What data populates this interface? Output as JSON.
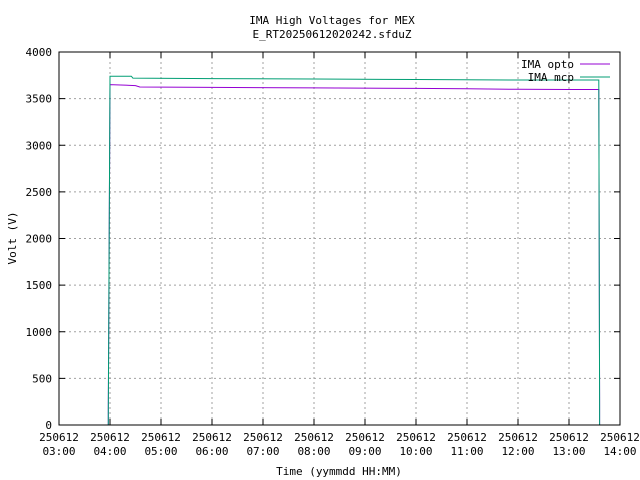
{
  "chart_data": {
    "type": "line",
    "title": "IMA High Voltages for MEX",
    "subtitle": "E_RT20250612020242.sfduZ",
    "xlabel": "Time (yymmdd HH:MM)",
    "ylabel": "Volt (V)",
    "xlim": [
      "2025-06-12 03:00",
      "2025-06-12 14:00"
    ],
    "ylim": [
      0,
      4000
    ],
    "grid": true,
    "legend_position": "top-right",
    "x_ticks": [
      {
        "date": "250612",
        "time": "03:00",
        "at": "2025-06-12 03:00"
      },
      {
        "date": "250612",
        "time": "04:00",
        "at": "2025-06-12 04:00"
      },
      {
        "date": "250612",
        "time": "05:00",
        "at": "2025-06-12 05:00"
      },
      {
        "date": "250612",
        "time": "06:00",
        "at": "2025-06-12 06:00"
      },
      {
        "date": "250612",
        "time": "07:00",
        "at": "2025-06-12 07:00"
      },
      {
        "date": "250612",
        "time": "08:00",
        "at": "2025-06-12 08:00"
      },
      {
        "date": "250612",
        "time": "09:00",
        "at": "2025-06-12 09:00"
      },
      {
        "date": "250612",
        "time": "10:00",
        "at": "2025-06-12 10:00"
      },
      {
        "date": "250612",
        "time": "11:00",
        "at": "2025-06-12 11:00"
      },
      {
        "date": "250612",
        "time": "12:00",
        "at": "2025-06-12 12:00"
      },
      {
        "date": "250612",
        "time": "13:00",
        "at": "2025-06-12 13:00"
      },
      {
        "date": "250612",
        "time": "14:00",
        "at": "2025-06-12 14:00"
      }
    ],
    "y_ticks": [
      0,
      500,
      1000,
      1500,
      2000,
      2500,
      3000,
      3500,
      4000
    ],
    "series": [
      {
        "name": "IMA opto",
        "color": "#9400d3",
        "points": [
          [
            "2025-06-12 03:58",
            0
          ],
          [
            "2025-06-12 03:58",
            200
          ],
          [
            "2025-06-12 04:00",
            3650
          ],
          [
            "2025-06-12 04:30",
            3640
          ],
          [
            "2025-06-12 04:35",
            3625
          ],
          [
            "2025-06-12 06:00",
            3620
          ],
          [
            "2025-06-12 08:00",
            3615
          ],
          [
            "2025-06-12 10:00",
            3610
          ],
          [
            "2025-06-12 11:00",
            3605
          ],
          [
            "2025-06-12 12:00",
            3600
          ],
          [
            "2025-06-12 13:00",
            3598
          ],
          [
            "2025-06-12 13:35",
            3598
          ],
          [
            "2025-06-12 13:36",
            300
          ],
          [
            "2025-06-12 13:36",
            0
          ]
        ]
      },
      {
        "name": "IMA mcp",
        "color": "#009e73",
        "points": [
          [
            "2025-06-12 03:58",
            0
          ],
          [
            "2025-06-12 03:58",
            100
          ],
          [
            "2025-06-12 04:00",
            3740
          ],
          [
            "2025-06-12 04:25",
            3740
          ],
          [
            "2025-06-12 04:27",
            3720
          ],
          [
            "2025-06-12 06:00",
            3715
          ],
          [
            "2025-06-12 08:00",
            3710
          ],
          [
            "2025-06-12 10:00",
            3705
          ],
          [
            "2025-06-12 12:00",
            3700
          ],
          [
            "2025-06-12 13:35",
            3700
          ],
          [
            "2025-06-12 13:36",
            200
          ],
          [
            "2025-06-12 13:36",
            0
          ]
        ]
      }
    ]
  }
}
